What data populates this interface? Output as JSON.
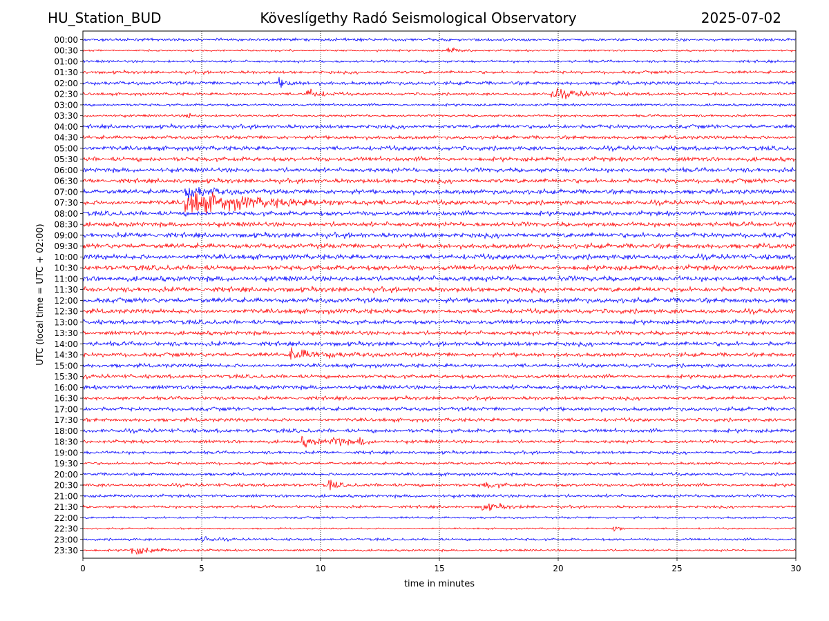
{
  "header": {
    "station": "HU_Station_BUD",
    "observatory": "Köveslígethy Radó Seismological Observatory",
    "date": "2025-07-02"
  },
  "chart_data": {
    "type": "line",
    "title": "Köveslígethy Radó Seismological Observatory",
    "xlabel": "time in minutes",
    "ylabel": "UTC (local time = UTC + 02:00)",
    "xlim": [
      0,
      30
    ],
    "xticks": [
      0,
      5,
      10,
      15,
      20,
      25,
      30
    ],
    "grid": "x-only, dotted",
    "series_colors": [
      "#0000ff",
      "#ff0000"
    ],
    "rows": [
      "00:00",
      "00:30",
      "01:00",
      "01:30",
      "02:00",
      "02:30",
      "03:00",
      "03:30",
      "04:00",
      "04:30",
      "05:00",
      "05:30",
      "06:00",
      "06:30",
      "07:00",
      "07:30",
      "08:00",
      "08:30",
      "09:00",
      "09:30",
      "10:00",
      "10:30",
      "11:00",
      "11:30",
      "12:00",
      "12:30",
      "13:00",
      "13:30",
      "14:00",
      "14:30",
      "15:00",
      "15:30",
      "16:00",
      "16:30",
      "17:00",
      "17:30",
      "18:00",
      "18:30",
      "19:00",
      "19:30",
      "20:00",
      "20:30",
      "21:00",
      "21:30",
      "22:00",
      "22:30",
      "23:00",
      "23:30"
    ],
    "noise_levels": [
      0.5,
      0.35,
      0.45,
      0.55,
      0.65,
      0.5,
      0.45,
      0.45,
      0.7,
      0.65,
      0.8,
      0.8,
      0.8,
      0.8,
      0.85,
      0.85,
      0.85,
      0.85,
      0.9,
      0.9,
      0.95,
      0.95,
      0.95,
      0.9,
      0.9,
      0.85,
      0.8,
      0.75,
      0.8,
      0.75,
      0.7,
      0.7,
      0.75,
      0.65,
      0.7,
      0.65,
      0.7,
      0.6,
      0.55,
      0.5,
      0.55,
      0.6,
      0.55,
      0.5,
      0.4,
      0.3,
      0.45,
      0.4
    ],
    "events": [
      {
        "row": 1,
        "minute": 15.3,
        "amplitude": 1.6,
        "duration": 0.6
      },
      {
        "row": 4,
        "minute": 8.2,
        "amplitude": 1.6,
        "duration": 0.7
      },
      {
        "row": 5,
        "minute": 9.4,
        "amplitude": 2.2,
        "duration": 0.8
      },
      {
        "row": 5,
        "minute": 19.7,
        "amplitude": 1.8,
        "duration": 2.0
      },
      {
        "row": 7,
        "minute": 4.3,
        "amplitude": 1.2,
        "duration": 0.5
      },
      {
        "row": 14,
        "minute": 4.3,
        "amplitude": 2.5,
        "duration": 1.5
      },
      {
        "row": 15,
        "minute": 4.3,
        "amplitude": 4.5,
        "duration": 4.0
      },
      {
        "row": 29,
        "minute": 8.7,
        "amplitude": 2.0,
        "duration": 2.0
      },
      {
        "row": 37,
        "minute": 9.2,
        "amplitude": 1.6,
        "duration": 1.2
      },
      {
        "row": 37,
        "minute": 10.5,
        "amplitude": 2.4,
        "duration": 0.6
      },
      {
        "row": 37,
        "minute": 11.6,
        "amplitude": 1.6,
        "duration": 0.5
      },
      {
        "row": 41,
        "minute": 10.3,
        "amplitude": 2.2,
        "duration": 0.5
      },
      {
        "row": 41,
        "minute": 16.8,
        "amplitude": 1.4,
        "duration": 0.8
      },
      {
        "row": 43,
        "minute": 16.8,
        "amplitude": 1.4,
        "duration": 1.2
      },
      {
        "row": 45,
        "minute": 22.3,
        "amplitude": 1.5,
        "duration": 0.4
      },
      {
        "row": 46,
        "minute": 5.0,
        "amplitude": 1.5,
        "duration": 0.6
      },
      {
        "row": 47,
        "minute": 2.0,
        "amplitude": 1.6,
        "duration": 1.5
      }
    ]
  }
}
